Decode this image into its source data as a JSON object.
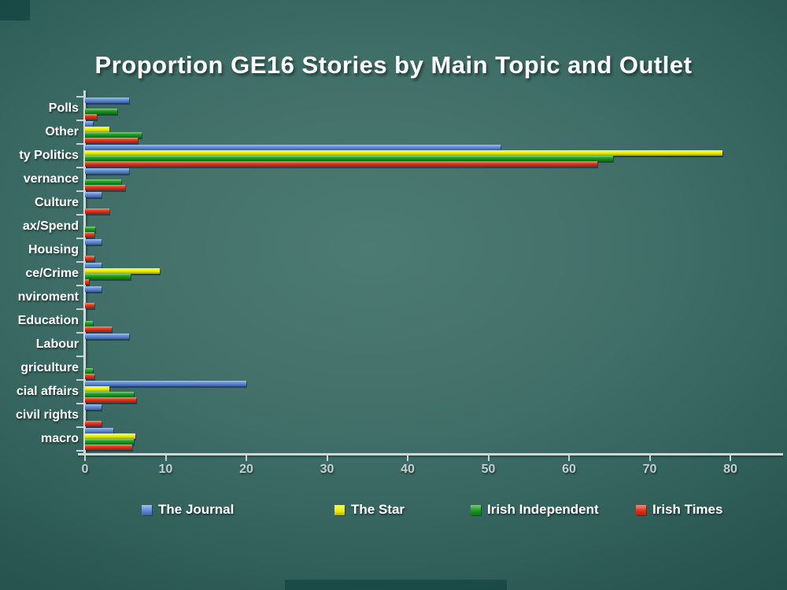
{
  "title": "Proportion GE16 Stories by Main Topic and Outlet",
  "background": {
    "center": "#4c7b72",
    "edge": "#214c48"
  },
  "axis_color": "#ccd8da",
  "tick_label_color": "#c3d0d0",
  "chart_data": {
    "type": "bar",
    "orientation": "horizontal",
    "title": "Proportion GE16 Stories by Main Topic and Outlet",
    "categories": [
      "Polls",
      "Other",
      "ty Politics",
      "vernance",
      "Culture",
      "ax/Spend",
      "Housing",
      "ce/Crime",
      "nviroment",
      "Education",
      "Labour",
      "griculture",
      "cial affairs",
      "civil rights",
      "macro"
    ],
    "series": [
      {
        "name": "The Journal",
        "color": "#5b8ad8",
        "values": [
          5.5,
          1,
          51.5,
          5.5,
          2,
          0,
          2,
          2,
          2,
          0,
          5.5,
          0,
          20,
          2,
          3.5
        ]
      },
      {
        "name": "The Star",
        "color": "#eef000",
        "values": [
          0,
          3,
          79,
          0,
          0,
          0,
          0,
          9.3,
          0,
          0,
          0,
          0,
          3,
          0,
          6.2
        ]
      },
      {
        "name": "Irish Independent",
        "color": "#169a1c",
        "values": [
          4,
          7,
          65.5,
          4.5,
          0,
          1.3,
          0,
          5.7,
          0,
          1,
          0,
          1,
          6,
          0,
          6.0
        ]
      },
      {
        "name": "Irish Times",
        "color": "#e23018",
        "values": [
          1.5,
          6.5,
          63.5,
          5,
          3,
          1.2,
          1.2,
          0.5,
          1.2,
          3.3,
          0,
          1.2,
          6.3,
          2,
          5.9
        ]
      }
    ],
    "x_ticks": [
      "0",
      "10",
      "20",
      "30",
      "40",
      "50",
      "60",
      "70",
      "80"
    ],
    "xlim": [
      0,
      86
    ],
    "grid": false,
    "legend_position": "bottom"
  }
}
